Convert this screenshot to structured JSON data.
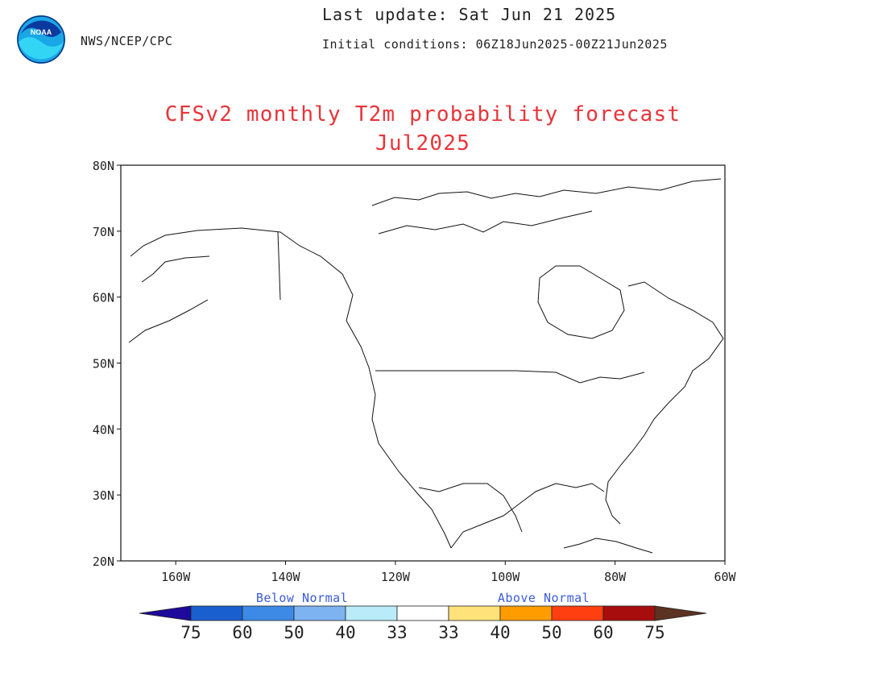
{
  "header": {
    "agency": "NWS/NCEP/CPC",
    "last_update": "Last update: Sat Jun 21 2025",
    "initial_conditions": "Initial conditions: 06Z18Jun2025-00Z21Jun2025",
    "logo_text": "NOAA"
  },
  "title": {
    "line1": "CFSv2 monthly T2m probability forecast",
    "line2": "Jul2025"
  },
  "axes": {
    "lat_ticks": [
      "80N",
      "70N",
      "60N",
      "50N",
      "40N",
      "30N",
      "20N"
    ],
    "lon_ticks": [
      "160W",
      "140W",
      "120W",
      "100W",
      "80W",
      "60W"
    ],
    "lat_range": [
      20,
      80
    ],
    "lon_range": [
      -170,
      -60
    ]
  },
  "legend": {
    "below_label": "Below Normal",
    "above_label": "Above Normal",
    "numbers": [
      "75",
      "60",
      "50",
      "40",
      "33",
      "33",
      "40",
      "50",
      "60",
      "75"
    ],
    "colors": [
      "#1e0a9a",
      "#1a5fcf",
      "#3c8ae6",
      "#7db3f0",
      "#b9ecf8",
      "#ffffff",
      "#ffe27a",
      "#ff9d00",
      "#ff3f0f",
      "#a70d0d",
      "#5c3222"
    ]
  },
  "colors": {
    "title": "#e8343a",
    "below_caption": "#3b5bdb"
  }
}
